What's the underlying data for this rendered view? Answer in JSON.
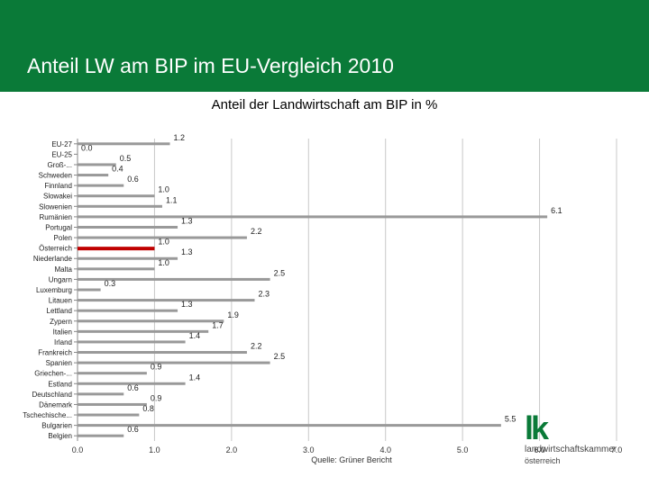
{
  "header": {
    "title": "Anteil LW am BIP im EU-Vergleich 2010",
    "background": "#0a7a38"
  },
  "chart_data": {
    "type": "bar",
    "orientation": "horizontal",
    "title": "Anteil der Landwirtschaft am BIP  in %",
    "xlabel": "",
    "ylabel": "",
    "xlim": [
      0,
      7
    ],
    "x_ticks": [
      "0.0",
      "1.0",
      "2.0",
      "3.0",
      "4.0",
      "5.0",
      "6.0",
      "7.0"
    ],
    "grid": "vertical",
    "bar_color": "#999999",
    "highlight_color": "#c00000",
    "highlight_category": "Österreich",
    "categories": [
      "EU-27",
      "EU-25",
      "Groß-...",
      "Schweden",
      "Finnland",
      "Slowakei",
      "Slowenien",
      "Rumänien",
      "Portugal",
      "Polen",
      "Österreich",
      "Niederlande",
      "Malta",
      "Ungarn",
      "Luxemburg",
      "Litauen",
      "Lettland",
      "Zypern",
      "Italien",
      "Irland",
      "Frankreich",
      "Spanien",
      "Griechen-...",
      "Estland",
      "Deutschland",
      "Dänemark",
      "Tschechische...",
      "Bulgarien",
      "Belgien"
    ],
    "values": [
      1.2,
      0.0,
      0.5,
      0.4,
      0.6,
      1.0,
      1.1,
      6.1,
      1.3,
      2.2,
      1.0,
      1.3,
      1.0,
      2.5,
      0.3,
      2.3,
      1.3,
      1.9,
      1.7,
      1.4,
      2.2,
      2.5,
      0.9,
      1.4,
      0.6,
      0.9,
      0.8,
      5.5,
      0.6
    ],
    "value_labels": [
      "1.2",
      "0.0",
      "0.5",
      "0.4",
      "0.6",
      "1.0",
      "1.1",
      "6.1",
      "1.3",
      "2.2",
      "1.0",
      "1.3",
      "1.0",
      "2.5",
      "0.3",
      "2.3",
      "1.3",
      "1.9",
      "1.7",
      "1.4",
      "2.2",
      "2.5",
      "0.9",
      "1.4",
      "0.6",
      "0.9",
      "0.8",
      "5.5",
      "0.6"
    ]
  },
  "source": "Quelle: Grüner Bericht",
  "logo": {
    "mark": "lk",
    "line1": "landwirtschaftskammer",
    "line2": "österreich"
  }
}
